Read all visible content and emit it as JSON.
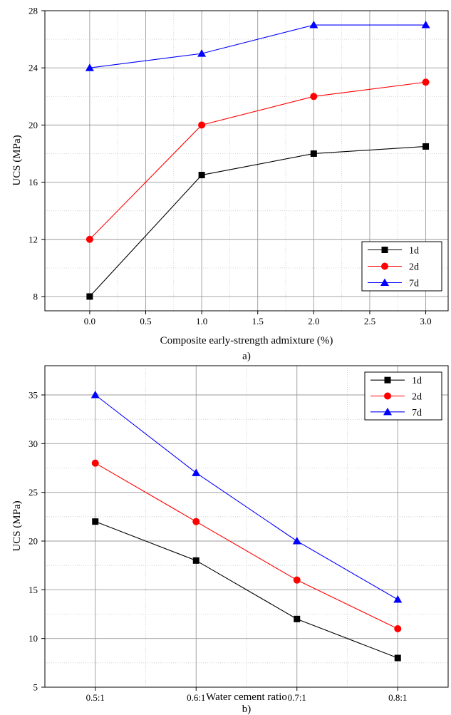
{
  "chart_data": [
    {
      "type": "line",
      "xlabel": "Composite early-strength admixture (%)",
      "ylabel": "UCS (MPa)",
      "caption": "a)",
      "xlim": [
        -0.4,
        3.2
      ],
      "ylim": [
        7,
        28
      ],
      "xticks": [
        "0.0",
        "0.5",
        "1.0",
        "1.5",
        "2.0",
        "2.5",
        "3.0"
      ],
      "xtick_values": [
        0,
        0.5,
        1.0,
        1.5,
        2.0,
        2.5,
        3.0
      ],
      "yticks": [
        "8",
        "12",
        "16",
        "20",
        "24",
        "28"
      ],
      "ytick_values": [
        8,
        12,
        16,
        20,
        24,
        28
      ],
      "x": [
        0,
        1,
        2,
        3
      ],
      "grid": true,
      "legend_position": "bottom-right",
      "series": [
        {
          "name": "1d",
          "values": [
            8,
            16.5,
            18,
            18.5
          ],
          "color": "#000000",
          "marker": "square"
        },
        {
          "name": "2d",
          "values": [
            12,
            20,
            22,
            23
          ],
          "color": "#ff0000",
          "marker": "circle"
        },
        {
          "name": "7d",
          "values": [
            24,
            25,
            27,
            27
          ],
          "color": "#0000ff",
          "marker": "triangle"
        }
      ]
    },
    {
      "type": "line",
      "xlabel": "Water cement ratio",
      "ylabel": "UCS (MPa)",
      "caption": "b)",
      "categories": [
        "0.5:1",
        "0.6:1",
        "0.7:1",
        "0.8:1"
      ],
      "ylim": [
        5,
        38
      ],
      "yticks": [
        "5",
        "10",
        "15",
        "20",
        "25",
        "30",
        "35"
      ],
      "ytick_values": [
        5,
        10,
        15,
        20,
        25,
        30,
        35
      ],
      "grid": true,
      "legend_position": "top-right",
      "series": [
        {
          "name": "1d",
          "values": [
            22,
            18,
            12,
            8
          ],
          "color": "#000000",
          "marker": "square"
        },
        {
          "name": "2d",
          "values": [
            28,
            22,
            16,
            11
          ],
          "color": "#ff0000",
          "marker": "circle"
        },
        {
          "name": "7d",
          "values": [
            35,
            27,
            20,
            14
          ],
          "color": "#0000ff",
          "marker": "triangle"
        }
      ]
    }
  ]
}
